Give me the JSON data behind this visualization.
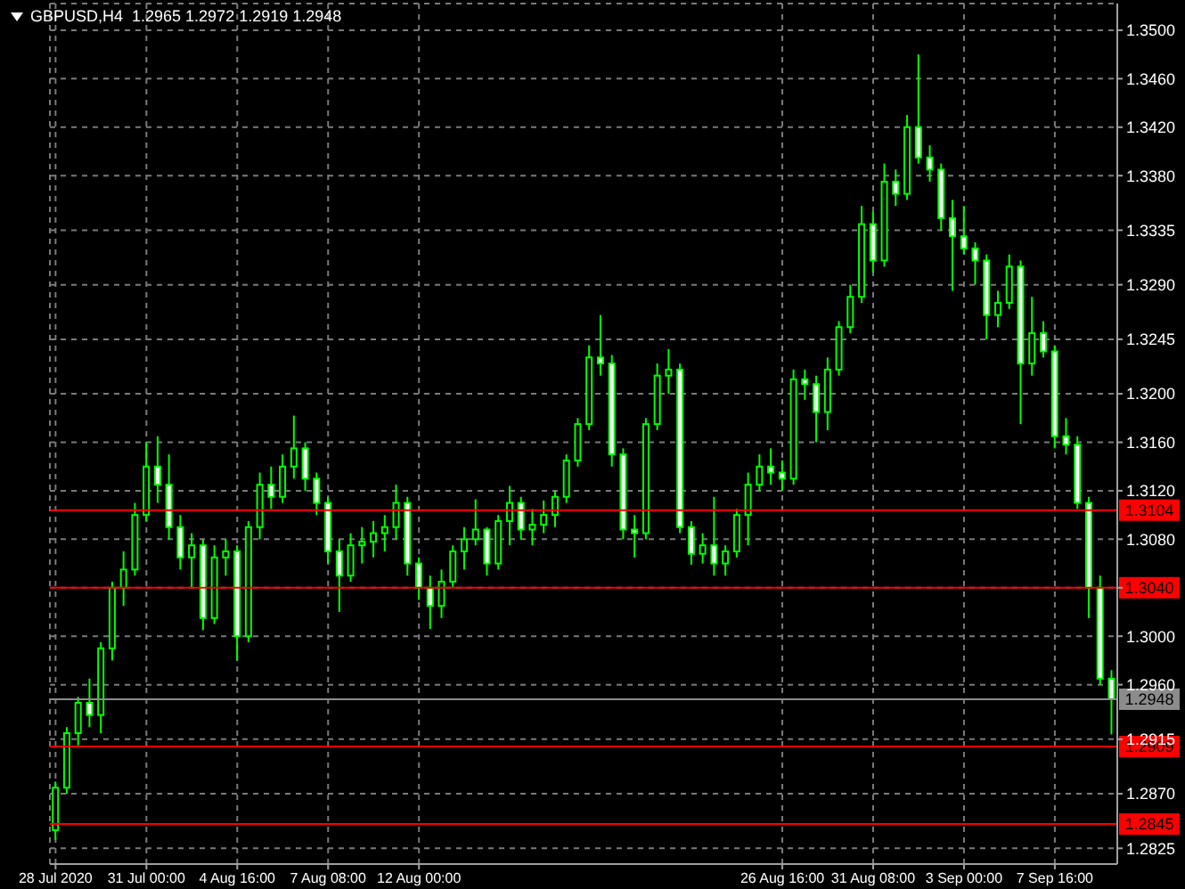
{
  "chart_data": {
    "type": "candlestick",
    "title": "GBPUSD,H4  1.2965 1.2972 1.2919 1.2948",
    "color": "#00ff00",
    "grid": true,
    "categories": [
      "28 Jul 2020",
      null,
      null,
      null,
      null,
      null,
      null,
      null,
      "31 Jul 00:00",
      null,
      null,
      null,
      null,
      null,
      null,
      null,
      "4 Aug 16:00",
      null,
      null,
      null,
      null,
      null,
      null,
      null,
      "7 Aug 08:00",
      null,
      null,
      null,
      null,
      null,
      null,
      null,
      "12 Aug 00:00",
      null,
      null,
      null,
      null,
      null,
      null,
      null,
      null,
      null,
      null,
      null,
      null,
      null,
      null,
      null,
      null,
      null,
      null,
      null,
      null,
      null,
      null,
      null,
      null,
      null,
      null,
      null,
      null,
      null,
      null,
      null,
      "26 Aug 16:00",
      null,
      null,
      null,
      null,
      null,
      null,
      null,
      "31 Aug 08:00",
      null,
      null,
      null,
      null,
      null,
      null,
      null,
      "3 Sep 00:00",
      null,
      null,
      null,
      null,
      null,
      null,
      null,
      "7 Sep 16:00",
      null,
      null,
      null,
      null,
      null
    ],
    "ohlc": [
      [
        1.284,
        1.288,
        1.2832,
        1.2875
      ],
      [
        1.2875,
        1.2925,
        1.287,
        1.292
      ],
      [
        1.292,
        1.295,
        1.291,
        1.2945
      ],
      [
        1.2945,
        1.2965,
        1.2925,
        1.2935
      ],
      [
        1.2935,
        1.2995,
        1.292,
        1.299
      ],
      [
        1.299,
        1.3045,
        1.298,
        1.304
      ],
      [
        1.304,
        1.307,
        1.3025,
        1.3055
      ],
      [
        1.3055,
        1.311,
        1.305,
        1.31
      ],
      [
        1.31,
        1.316,
        1.3095,
        1.314
      ],
      [
        1.314,
        1.3165,
        1.311,
        1.3125
      ],
      [
        1.3125,
        1.315,
        1.308,
        1.309
      ],
      [
        1.309,
        1.31,
        1.3055,
        1.3065
      ],
      [
        1.3065,
        1.3085,
        1.304,
        1.3075
      ],
      [
        1.3075,
        1.308,
        1.3005,
        1.3015
      ],
      [
        1.3015,
        1.3075,
        1.301,
        1.3065
      ],
      [
        1.3065,
        1.308,
        1.305,
        1.307
      ],
      [
        1.307,
        1.3075,
        1.298,
        1.3
      ],
      [
        1.3,
        1.3095,
        1.2995,
        1.309
      ],
      [
        1.309,
        1.3135,
        1.308,
        1.3125
      ],
      [
        1.3125,
        1.314,
        1.3105,
        1.3115
      ],
      [
        1.3115,
        1.315,
        1.311,
        1.314
      ],
      [
        1.314,
        1.3182,
        1.313,
        1.3155
      ],
      [
        1.3155,
        1.316,
        1.312,
        1.313
      ],
      [
        1.313,
        1.3135,
        1.31,
        1.311
      ],
      [
        1.311,
        1.3115,
        1.306,
        1.307
      ],
      [
        1.307,
        1.308,
        1.302,
        1.305
      ],
      [
        1.305,
        1.3085,
        1.3045,
        1.3075
      ],
      [
        1.3075,
        1.309,
        1.306,
        1.3078
      ],
      [
        1.3078,
        1.3095,
        1.3065,
        1.3085
      ],
      [
        1.3085,
        1.31,
        1.307,
        1.309
      ],
      [
        1.309,
        1.3125,
        1.308,
        1.311
      ],
      [
        1.311,
        1.3115,
        1.305,
        1.306
      ],
      [
        1.306,
        1.3065,
        1.303,
        1.304
      ],
      [
        1.304,
        1.305,
        1.3006,
        1.3025
      ],
      [
        1.3025,
        1.3055,
        1.3015,
        1.3045
      ],
      [
        1.3045,
        1.3075,
        1.304,
        1.307
      ],
      [
        1.307,
        1.309,
        1.3055,
        1.308
      ],
      [
        1.308,
        1.3113,
        1.3075,
        1.3088
      ],
      [
        1.3088,
        1.309,
        1.305,
        1.306
      ],
      [
        1.306,
        1.31,
        1.3055,
        1.3095
      ],
      [
        1.3095,
        1.3124,
        1.3075,
        1.311
      ],
      [
        1.311,
        1.3115,
        1.308,
        1.3088
      ],
      [
        1.3088,
        1.3105,
        1.3075,
        1.3092
      ],
      [
        1.3092,
        1.3112,
        1.3085,
        1.31
      ],
      [
        1.31,
        1.312,
        1.309,
        1.3115
      ],
      [
        1.3115,
        1.315,
        1.311,
        1.3145
      ],
      [
        1.3145,
        1.318,
        1.314,
        1.3175
      ],
      [
        1.3175,
        1.324,
        1.317,
        1.323
      ],
      [
        1.323,
        1.3265,
        1.3215,
        1.3225
      ],
      [
        1.3225,
        1.3232,
        1.314,
        1.315
      ],
      [
        1.315,
        1.3155,
        1.308,
        1.3088
      ],
      [
        1.3088,
        1.31,
        1.3065,
        1.3085
      ],
      [
        1.3085,
        1.318,
        1.308,
        1.3175
      ],
      [
        1.3175,
        1.3225,
        1.317,
        1.3215
      ],
      [
        1.3215,
        1.3237,
        1.32,
        1.322
      ],
      [
        1.322,
        1.3225,
        1.3085,
        1.309
      ],
      [
        1.309,
        1.3095,
        1.3059,
        1.3068
      ],
      [
        1.3068,
        1.3085,
        1.306,
        1.3075
      ],
      [
        1.3075,
        1.3115,
        1.305,
        1.306
      ],
      [
        1.306,
        1.3075,
        1.305,
        1.307
      ],
      [
        1.307,
        1.3105,
        1.3065,
        1.31
      ],
      [
        1.31,
        1.3135,
        1.3075,
        1.3125
      ],
      [
        1.3125,
        1.315,
        1.312,
        1.314
      ],
      [
        1.314,
        1.3155,
        1.3125,
        1.3135
      ],
      [
        1.3135,
        1.3145,
        1.312,
        1.313
      ],
      [
        1.313,
        1.322,
        1.3125,
        1.3212
      ],
      [
        1.3212,
        1.322,
        1.3195,
        1.3208
      ],
      [
        1.3208,
        1.3215,
        1.316,
        1.3185
      ],
      [
        1.3185,
        1.323,
        1.317,
        1.322
      ],
      [
        1.322,
        1.326,
        1.3215,
        1.3255
      ],
      [
        1.3255,
        1.329,
        1.325,
        1.328
      ],
      [
        1.328,
        1.3355,
        1.3275,
        1.334
      ],
      [
        1.334,
        1.335,
        1.33,
        1.331
      ],
      [
        1.331,
        1.339,
        1.3305,
        1.3375
      ],
      [
        1.3375,
        1.3385,
        1.3355,
        1.3365
      ],
      [
        1.3365,
        1.343,
        1.336,
        1.342
      ],
      [
        1.342,
        1.348,
        1.339,
        1.3395
      ],
      [
        1.3395,
        1.3405,
        1.3375,
        1.3385
      ],
      [
        1.3385,
        1.339,
        1.3335,
        1.3345
      ],
      [
        1.3345,
        1.336,
        1.3285,
        1.333
      ],
      [
        1.333,
        1.3355,
        1.3315,
        1.332
      ],
      [
        1.332,
        1.3325,
        1.329,
        1.331
      ],
      [
        1.331,
        1.3315,
        1.3245,
        1.3265
      ],
      [
        1.3265,
        1.3285,
        1.3255,
        1.3275
      ],
      [
        1.3275,
        1.3315,
        1.327,
        1.3305
      ],
      [
        1.3305,
        1.331,
        1.3175,
        1.3225
      ],
      [
        1.3225,
        1.328,
        1.3215,
        1.325
      ],
      [
        1.325,
        1.326,
        1.323,
        1.3235
      ],
      [
        1.3235,
        1.324,
        1.3155,
        1.3165
      ],
      [
        1.3165,
        1.318,
        1.315,
        1.3158
      ],
      [
        1.3158,
        1.3165,
        1.3105,
        1.311
      ],
      [
        1.311,
        1.3115,
        1.3015,
        1.304
      ],
      [
        1.304,
        1.305,
        1.296,
        1.2965
      ],
      [
        1.2965,
        1.2972,
        1.2919,
        1.2948
      ]
    ],
    "ylim": [
      1.2812,
      1.3522
    ],
    "yticks": [
      {
        "value": 1.35,
        "label": "1.3500"
      },
      {
        "value": 1.346,
        "label": "1.3460"
      },
      {
        "value": 1.342,
        "label": "1.3420"
      },
      {
        "value": 1.338,
        "label": "1.3380"
      },
      {
        "value": 1.3335,
        "label": "1.3335"
      },
      {
        "value": 1.329,
        "label": "1.3290"
      },
      {
        "value": 1.3245,
        "label": "1.3245"
      },
      {
        "value": 1.32,
        "label": "1.3200"
      },
      {
        "value": 1.316,
        "label": "1.3160"
      },
      {
        "value": 1.312,
        "label": "1.3120"
      },
      {
        "value": 1.308,
        "label": "1.3080"
      },
      {
        "value": 1.304,
        "label": null
      },
      {
        "value": 1.3,
        "label": "1.3000"
      },
      {
        "value": 1.296,
        "label": "1.2960"
      },
      {
        "value": 1.2915,
        "label": "1.2915"
      },
      {
        "value": 1.287,
        "label": "1.2870"
      },
      {
        "value": 1.2825,
        "label": "1.2825"
      }
    ],
    "ref_lines": [
      {
        "axis": "y",
        "value": 1.3104,
        "label": "1.3104",
        "color": "#ff0000"
      },
      {
        "axis": "y",
        "value": 1.304,
        "label": "1.3040",
        "color": "#ff0000"
      },
      {
        "axis": "y",
        "value": 1.2948,
        "label": "1.2948",
        "color": "#8c8c8c"
      },
      {
        "axis": "y",
        "value": 1.2909,
        "label": "1.2909",
        "color": "#ff0000"
      },
      {
        "axis": "y",
        "value": 1.2845,
        "label": "1.2845",
        "color": "#ff0000"
      }
    ]
  }
}
